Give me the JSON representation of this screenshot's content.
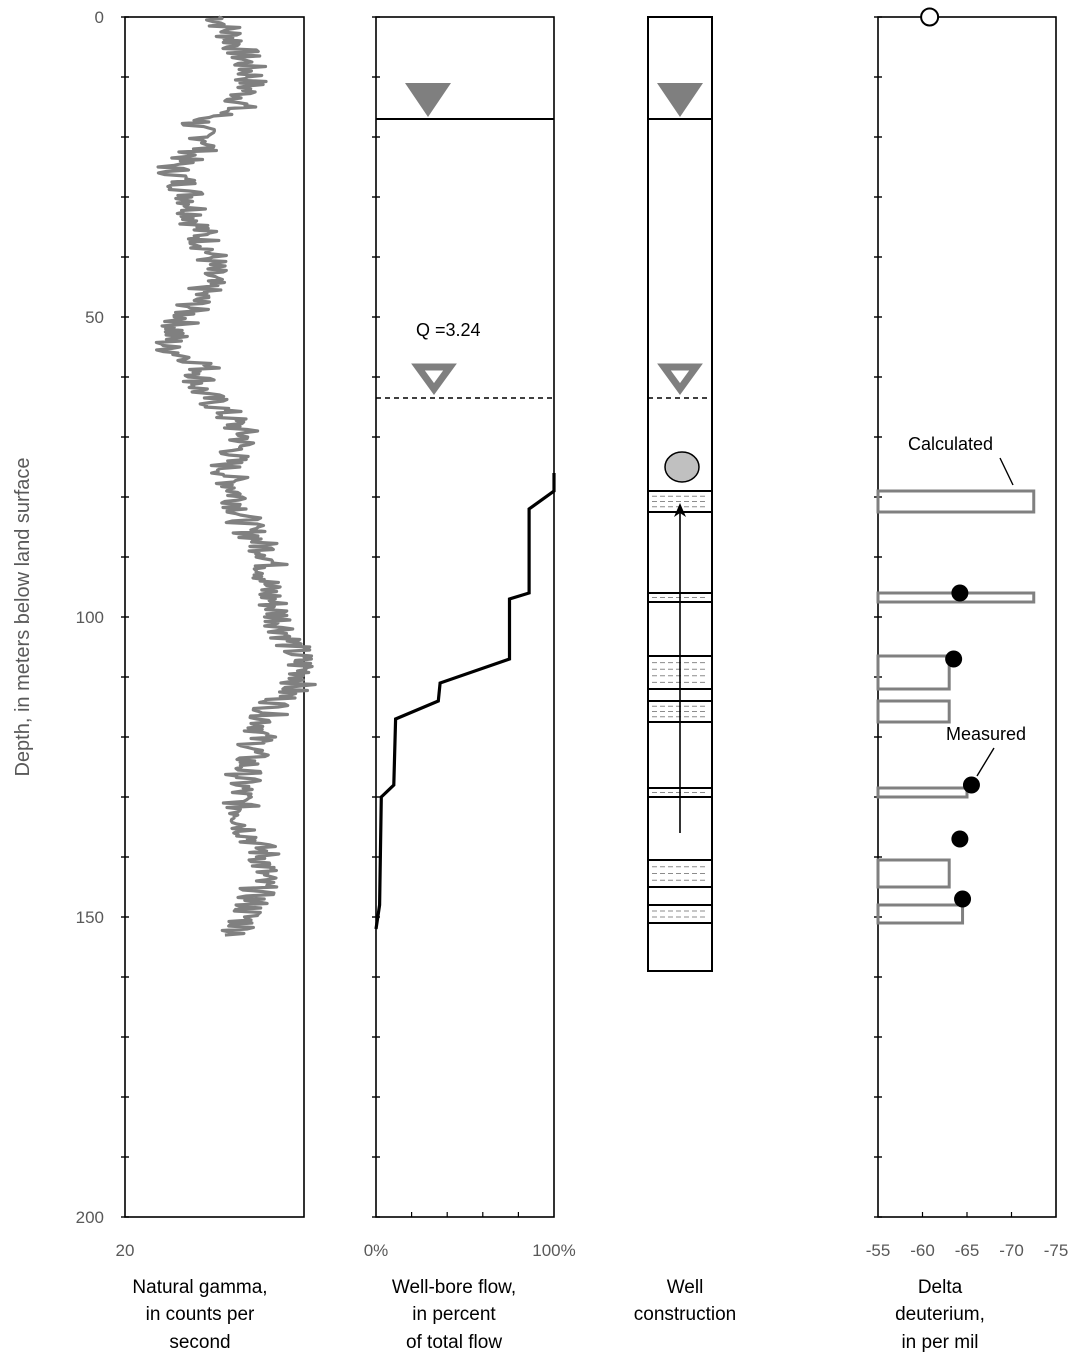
{
  "chart_data": {
    "type": "well-log",
    "ylabel": "Depth, in meters below land surface",
    "y_ticks": [
      "0",
      "50",
      "100",
      "150",
      "200"
    ],
    "ylim": [
      0,
      200
    ],
    "y_reversed": true,
    "panels": [
      {
        "id": "gamma",
        "type": "line",
        "xlabel": [
          "Natural gamma,",
          "in counts per",
          "second"
        ],
        "x_ticks": [
          "20"
        ],
        "color": "#808080",
        "profile": [
          {
            "depth": 0,
            "value": 34
          },
          {
            "depth": 5,
            "value": 37
          },
          {
            "depth": 10,
            "value": 39
          },
          {
            "depth": 15,
            "value": 37
          },
          {
            "depth": 18,
            "value": 30
          },
          {
            "depth": 21,
            "value": 33
          },
          {
            "depth": 25,
            "value": 27
          },
          {
            "depth": 30,
            "value": 30
          },
          {
            "depth": 35,
            "value": 31
          },
          {
            "depth": 40,
            "value": 33
          },
          {
            "depth": 45,
            "value": 32
          },
          {
            "depth": 50,
            "value": 29
          },
          {
            "depth": 55,
            "value": 26
          },
          {
            "depth": 58,
            "value": 32
          },
          {
            "depth": 62,
            "value": 31
          },
          {
            "depth": 66,
            "value": 35
          },
          {
            "depth": 70,
            "value": 38
          },
          {
            "depth": 75,
            "value": 35
          },
          {
            "depth": 80,
            "value": 37
          },
          {
            "depth": 85,
            "value": 38
          },
          {
            "depth": 90,
            "value": 42
          },
          {
            "depth": 95,
            "value": 41
          },
          {
            "depth": 100,
            "value": 43
          },
          {
            "depth": 105,
            "value": 45
          },
          {
            "depth": 110,
            "value": 47
          },
          {
            "depth": 115,
            "value": 42
          },
          {
            "depth": 120,
            "value": 40
          },
          {
            "depth": 125,
            "value": 38
          },
          {
            "depth": 130,
            "value": 37
          },
          {
            "depth": 135,
            "value": 38
          },
          {
            "depth": 140,
            "value": 41
          },
          {
            "depth": 145,
            "value": 40
          },
          {
            "depth": 150,
            "value": 38
          },
          {
            "depth": 153,
            "value": 37
          }
        ]
      },
      {
        "id": "flow",
        "type": "line",
        "xlabel": [
          "Well-bore flow,",
          "in percent",
          "of total flow"
        ],
        "x_ticks": [
          "0%",
          "100%"
        ],
        "xlim": [
          0,
          100
        ],
        "color": "#000000",
        "water_level_solid_depth": 17,
        "water_level_dashed_depth": 63.5,
        "annotation": "Q =3.24",
        "profile": [
          {
            "depth": 76,
            "value": 100
          },
          {
            "depth": 79,
            "value": 100
          },
          {
            "depth": 82,
            "value": 86
          },
          {
            "depth": 96,
            "value": 86
          },
          {
            "depth": 97,
            "value": 75
          },
          {
            "depth": 107,
            "value": 75
          },
          {
            "depth": 111,
            "value": 36
          },
          {
            "depth": 114,
            "value": 35
          },
          {
            "depth": 117,
            "value": 11
          },
          {
            "depth": 128,
            "value": 10
          },
          {
            "depth": 130,
            "value": 3
          },
          {
            "depth": 148,
            "value": 2
          },
          {
            "depth": 152,
            "value": 0
          }
        ]
      },
      {
        "id": "construction",
        "type": "diagram",
        "xlabel": [
          "Well",
          "construction"
        ],
        "bottom_depth": 159,
        "water_level_solid_depth": 17,
        "water_level_dashed_depth": 63.5,
        "pump_depth": 75,
        "flow_arrow": {
          "from_depth": 136,
          "to_depth": 81
        },
        "zones": [
          {
            "top": 79,
            "bottom": 82.5
          },
          {
            "top": 96,
            "bottom": 97.5
          },
          {
            "top": 106.5,
            "bottom": 112
          },
          {
            "top": 114,
            "bottom": 117.5
          },
          {
            "top": 128.5,
            "bottom": 130
          },
          {
            "top": 140.5,
            "bottom": 145
          },
          {
            "top": 148,
            "bottom": 151
          }
        ]
      },
      {
        "id": "deuterium",
        "type": "bar-scatter",
        "xlabel": [
          "Delta",
          "deuterium,",
          "in per mil"
        ],
        "x_ticks": [
          "-55",
          "-60",
          "-65",
          "-70",
          "-75"
        ],
        "xlim": [
          -55,
          -75
        ],
        "legend": {
          "calculated": "Calculated",
          "measured": "Measured"
        },
        "calculated_bars": [
          {
            "top": 79,
            "bottom": 82.5,
            "value": -72.5
          },
          {
            "top": 96,
            "bottom": 97.5,
            "value": -72.5
          },
          {
            "top": 106.5,
            "bottom": 112,
            "value": -63
          },
          {
            "top": 114,
            "bottom": 117.5,
            "value": -63
          },
          {
            "top": 128.5,
            "bottom": 130,
            "value": -65
          },
          {
            "top": 140.5,
            "bottom": 145,
            "value": -63
          },
          {
            "top": 148,
            "bottom": 151,
            "value": -64.5
          }
        ],
        "measured_points": [
          {
            "depth": 96,
            "value": -64.2
          },
          {
            "depth": 107,
            "value": -63.5
          },
          {
            "depth": 128,
            "value": -65.5
          },
          {
            "depth": 137,
            "value": -64.2
          },
          {
            "depth": 147,
            "value": -64.5
          }
        ],
        "surface_point": {
          "depth": 0,
          "value": -60.8
        }
      }
    ]
  }
}
